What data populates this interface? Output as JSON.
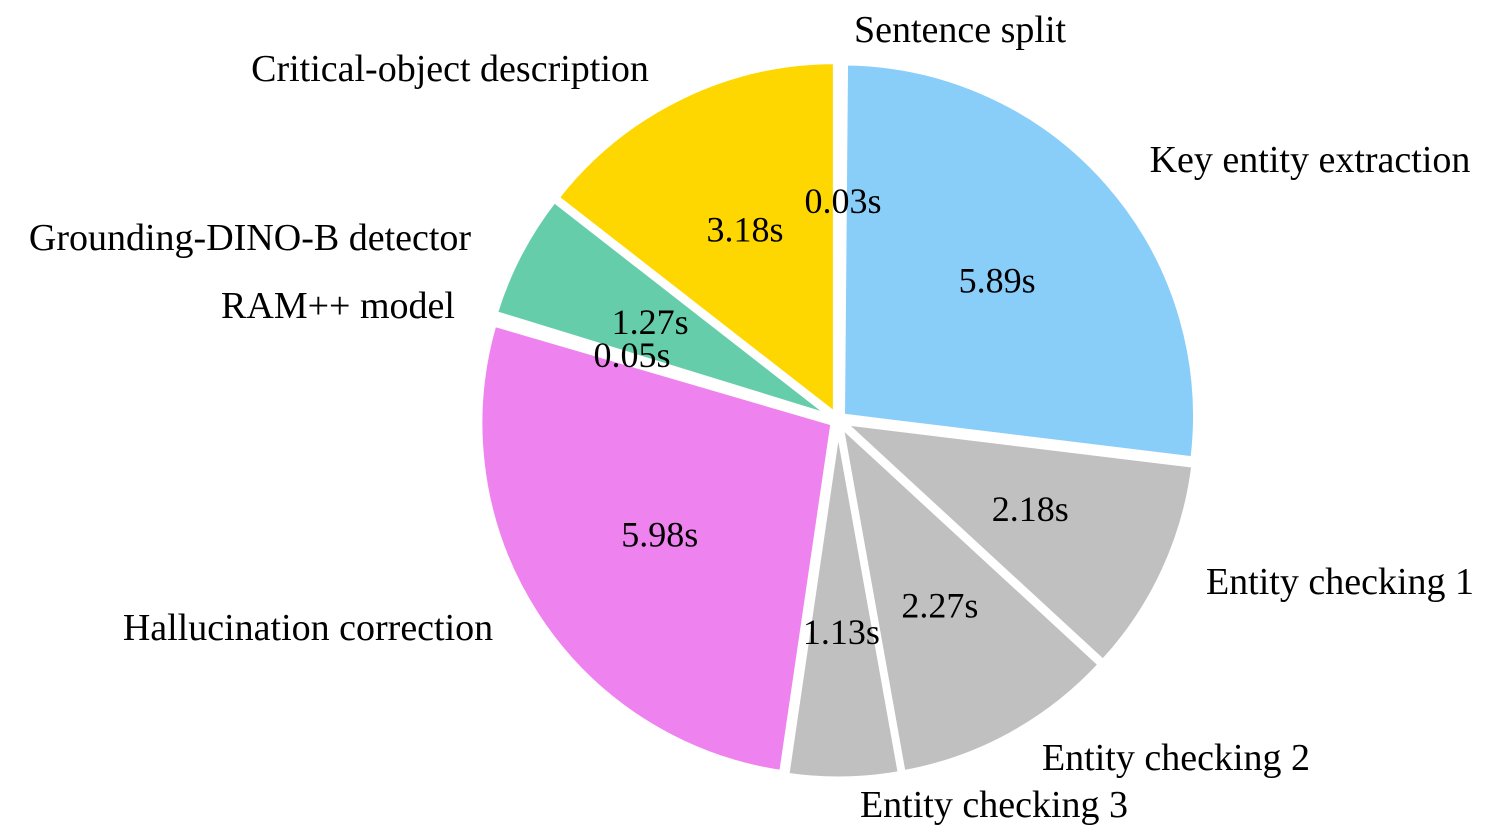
{
  "chart_data": {
    "type": "pie",
    "unit": "s",
    "start_angle_deg": 0,
    "direction": "clockwise",
    "slices": [
      {
        "label": "Sentence split",
        "value": 0.03,
        "value_label": "0.03s",
        "color": "#8ccbf4"
      },
      {
        "label": "Key entity extraction",
        "value": 5.89,
        "value_label": "5.89s",
        "color": "#89cdf9"
      },
      {
        "label": "Entity checking 1",
        "value": 2.18,
        "value_label": "2.18s",
        "color": "#c0c0c0"
      },
      {
        "label": "Entity checking 2",
        "value": 2.27,
        "value_label": "2.27s",
        "color": "#c0c0c0"
      },
      {
        "label": "Entity checking 3",
        "value": 1.13,
        "value_label": "1.13s",
        "color": "#c0c0c0"
      },
      {
        "label": "Hallucination correction",
        "value": 5.98,
        "value_label": "5.98s",
        "color": "#ee82ee"
      },
      {
        "label": "RAM++ model",
        "value": 0.05,
        "value_label": "0.05s",
        "color": "#66cdaa"
      },
      {
        "label": "Grounding-DINO-B detector",
        "value": 1.27,
        "value_label": "1.27s",
        "color": "#66cdaa"
      },
      {
        "label": "Critical-object description",
        "value": 3.18,
        "value_label": "3.18s",
        "color": "#ffd700"
      }
    ]
  }
}
